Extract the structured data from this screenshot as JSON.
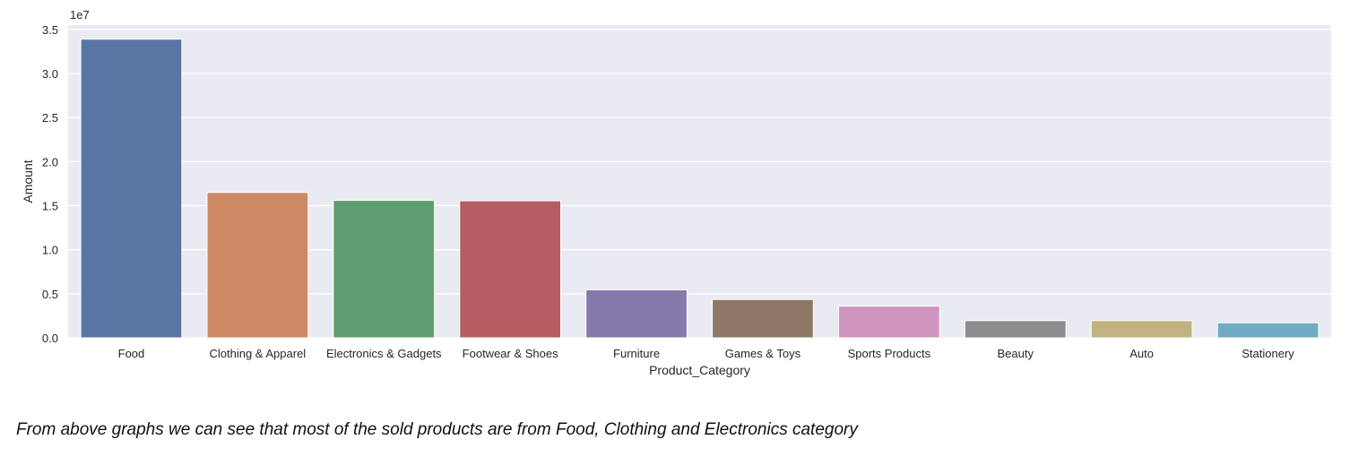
{
  "chart_data": {
    "type": "bar",
    "categories": [
      "Food",
      "Clothing & Apparel",
      "Electronics & Gadgets",
      "Footwear & Shoes",
      "Furniture",
      "Games & Toys",
      "Sports Products",
      "Beauty",
      "Auto",
      "Stationery"
    ],
    "values": [
      33900000,
      16500000,
      15600000,
      15550000,
      5450000,
      4350000,
      3600000,
      1950000,
      1950000,
      1700000
    ],
    "colors": [
      "#5975a4",
      "#cc8963",
      "#5f9e6e",
      "#b55d60",
      "#857aab",
      "#8d7866",
      "#d095bf",
      "#8c8c8c",
      "#c1b37f",
      "#6fabc3"
    ],
    "xlabel": "Product_Category",
    "ylabel": "Amount",
    "offset_label": "1e7",
    "ylim": [
      0,
      35500000
    ],
    "yticks": [
      0,
      5000000,
      10000000,
      15000000,
      20000000,
      25000000,
      30000000,
      35000000
    ],
    "ytick_labels": [
      "0.0",
      "0.5",
      "1.0",
      "1.5",
      "2.0",
      "2.5",
      "3.0",
      "3.5"
    ],
    "grid": true,
    "background": "#eaeaf2"
  },
  "caption": "From above graphs we can see that most of the sold products are from Food, Clothing and Electronics category"
}
